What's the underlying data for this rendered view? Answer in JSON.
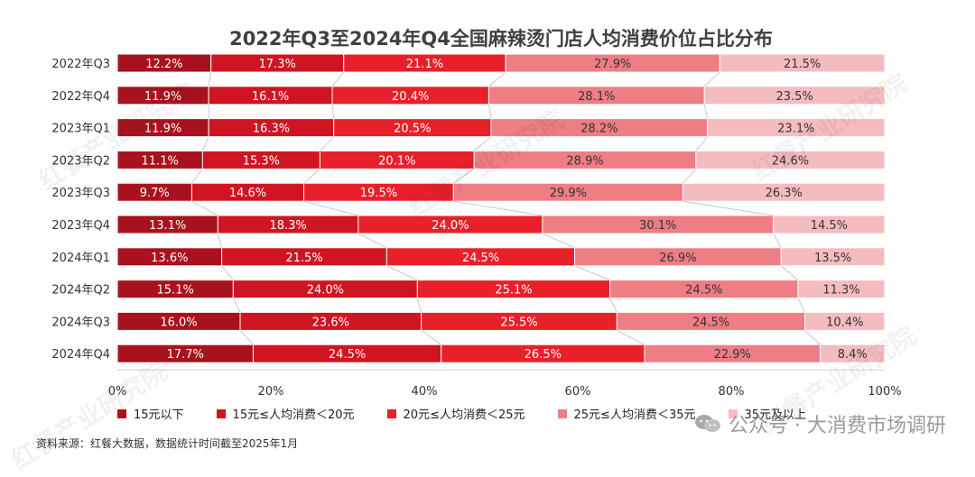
{
  "chart_data": {
    "type": "bar",
    "orientation": "horizontal",
    "stacked": true,
    "title": "2022年Q3至2024年Q4全国麻辣烫门店人均消费价位占比分布",
    "categories": [
      "2022年Q3",
      "2022年Q4",
      "2023年Q1",
      "2023年Q2",
      "2023年Q3",
      "2023年Q4",
      "2024年Q1",
      "2024年Q2",
      "2024年Q3",
      "2024年Q4"
    ],
    "series": [
      {
        "name": "15元以下",
        "color": "#a8121e",
        "values": [
          12.2,
          11.9,
          11.9,
          11.1,
          9.7,
          13.1,
          13.6,
          15.1,
          16.0,
          17.7
        ],
        "labels": [
          "12.2%",
          "11.9%",
          "11.9%",
          "11.1%",
          "9.7%",
          "13.1%",
          "13.6%",
          "15.1%",
          "16.0%",
          "17.7%"
        ]
      },
      {
        "name": "15元≤人均消费＜20元",
        "color": "#cf1422",
        "values": [
          17.3,
          16.1,
          16.3,
          15.3,
          14.6,
          18.3,
          21.5,
          24.0,
          23.6,
          24.5
        ],
        "labels": [
          "17.3%",
          "16.1%",
          "16.3%",
          "15.3%",
          "14.6%",
          "18.3%",
          "21.5%",
          "24.0%",
          "23.6%",
          "24.5%"
        ]
      },
      {
        "name": "20元≤人均消费＜25元",
        "color": "#e8202a",
        "values": [
          21.1,
          20.4,
          20.5,
          20.1,
          19.5,
          24.0,
          24.5,
          25.1,
          25.5,
          26.5
        ],
        "labels": [
          "21.1%",
          "20.4%",
          "20.5%",
          "20.1%",
          "19.5%",
          "24.0%",
          "24.5%",
          "25.1%",
          "25.5%",
          "26.5%"
        ]
      },
      {
        "name": "25元≤人均消费＜35元",
        "color": "#ef7d84",
        "values": [
          27.9,
          28.1,
          28.2,
          28.9,
          29.9,
          30.1,
          26.9,
          24.5,
          24.5,
          22.9
        ],
        "labels": [
          "27.9%",
          "28.1%",
          "28.2%",
          "28.9%",
          "29.9%",
          "30.1%",
          "26.9%",
          "24.5%",
          "24.5%",
          "22.9%"
        ]
      },
      {
        "name": "35元及以上",
        "color": "#f5bcc0",
        "values": [
          21.5,
          23.5,
          23.1,
          24.6,
          26.3,
          14.5,
          13.5,
          11.3,
          10.4,
          8.4
        ],
        "labels": [
          "21.5%",
          "23.5%",
          "23.1%",
          "24.6%",
          "26.3%",
          "14.5%",
          "13.5%",
          "11.3%",
          "10.4%",
          "8.4%"
        ]
      }
    ],
    "xlim": [
      0,
      100
    ],
    "x_ticks": [
      "0%",
      "20%",
      "40%",
      "60%",
      "80%",
      "100%"
    ],
    "x_tick_values": [
      0,
      20,
      40,
      60,
      80,
      100
    ],
    "grid": false,
    "legend_position": "bottom"
  },
  "source_note": "资料来源：红餐大数据，数据统计时间截至2025年1月",
  "watermark_text": "公众号 · 大消费市场调研",
  "background_watermark": "红餐产业研究院"
}
